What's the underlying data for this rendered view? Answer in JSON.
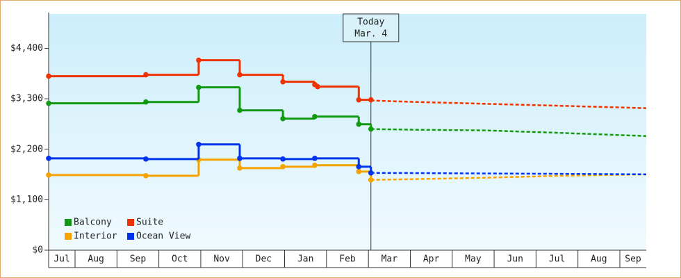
{
  "chart_data": {
    "type": "step-line",
    "categories": [
      "Jul",
      "Aug",
      "Sep",
      "Oct",
      "Nov",
      "Dec",
      "Jan",
      "Feb",
      "Mar",
      "Apr",
      "May",
      "Jun",
      "Jul",
      "Aug",
      "Sep"
    ],
    "xlim": [
      0.37,
      14.63
    ],
    "ylim": [
      0,
      5150
    ],
    "yticks": [
      {
        "value": 0,
        "label": "$0"
      },
      {
        "value": 1100,
        "label": "$1,100"
      },
      {
        "value": 2200,
        "label": "$2,200"
      },
      {
        "value": 3300,
        "label": "$3,300"
      },
      {
        "value": 4400,
        "label": "$4,400"
      }
    ],
    "today": {
      "x": 8.06,
      "label": [
        "Today",
        "Mar. 4"
      ]
    },
    "forecast_x": [
      8.06,
      9.16,
      10.82,
      12.48,
      14.63
    ],
    "series": [
      {
        "name": "Balcony",
        "color": "#119911",
        "x": [
          0.37,
          2.69,
          3.95,
          4.93,
          5.96,
          6.72,
          7.77,
          8.06
        ],
        "values": [
          3201,
          3231,
          3550,
          3049,
          2867,
          2912,
          2746,
          2640
        ],
        "forecast_values": [
          2640,
          2625,
          2610,
          2560,
          2488
        ]
      },
      {
        "name": "Suite",
        "color": "#ee3300",
        "x": [
          0.37,
          2.69,
          3.95,
          4.93,
          5.96,
          6.72,
          6.79,
          7.77,
          8.06
        ],
        "values": [
          3793,
          3823,
          4141,
          3823,
          3671,
          3610,
          3565,
          3277,
          3277
        ],
        "forecast_values": [
          3262,
          3230,
          3190,
          3150,
          3095
        ]
      },
      {
        "name": "Interior",
        "color": "#f5a300",
        "x": [
          0.37,
          2.69,
          3.95,
          4.93,
          5.96,
          6.72,
          7.77,
          8.06
        ],
        "values": [
          1638,
          1623,
          1972,
          1790,
          1820,
          1851,
          1714,
          1532
        ],
        "forecast_values": [
          1532,
          1550,
          1580,
          1620,
          1653
        ]
      },
      {
        "name": "Ocean View",
        "color": "#0033ee",
        "x": [
          0.37,
          2.69,
          3.95,
          4.93,
          5.96,
          6.72,
          7.77,
          8.06
        ],
        "values": [
          2002,
          1987,
          2306,
          2002,
          1987,
          2002,
          1820,
          1684
        ],
        "forecast_values": [
          1684,
          1680,
          1672,
          1665,
          1653
        ]
      }
    ]
  }
}
